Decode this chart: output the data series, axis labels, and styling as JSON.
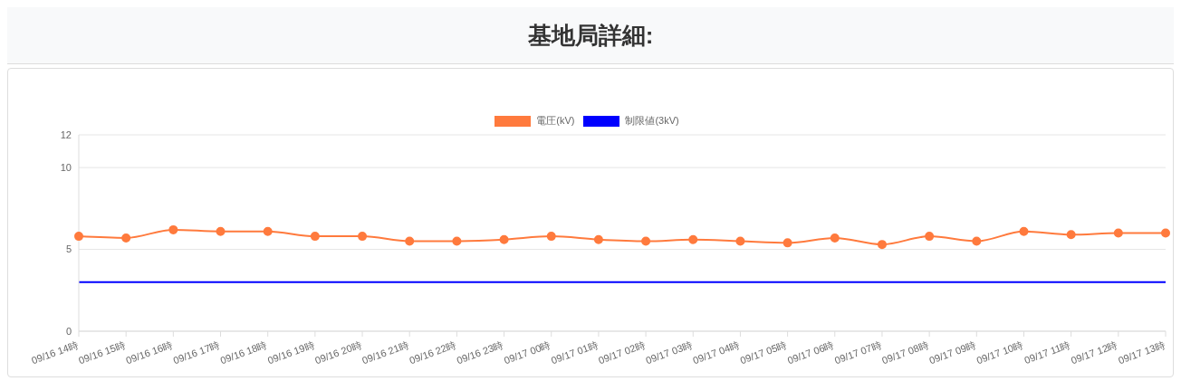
{
  "chart_data": {
    "type": "line",
    "title": "基地局詳細:",
    "categories": [
      "09/16 14時",
      "09/16 15時",
      "09/16 16時",
      "09/16 17時",
      "09/16 18時",
      "09/16 19時",
      "09/16 20時",
      "09/16 21時",
      "09/16 22時",
      "09/16 23時",
      "09/17 00時",
      "09/17 01時",
      "09/17 02時",
      "09/17 03時",
      "09/17 04時",
      "09/17 05時",
      "09/17 06時",
      "09/17 07時",
      "09/17 08時",
      "09/17 09時",
      "09/17 10時",
      "09/17 11時",
      "09/17 12時",
      "09/17 13時"
    ],
    "series": [
      {
        "name": "電圧(kV)",
        "color": "#ff7a3d",
        "marker": "circle",
        "values": [
          5.8,
          5.7,
          6.2,
          6.1,
          6.1,
          5.8,
          5.8,
          5.5,
          5.5,
          5.6,
          5.8,
          5.6,
          5.5,
          5.6,
          5.5,
          5.4,
          5.7,
          5.3,
          5.8,
          5.5,
          6.1,
          5.9,
          6.0,
          6.0
        ]
      },
      {
        "name": "制限値(3kV)",
        "color": "#0000ff",
        "marker": "none",
        "values": [
          3,
          3,
          3,
          3,
          3,
          3,
          3,
          3,
          3,
          3,
          3,
          3,
          3,
          3,
          3,
          3,
          3,
          3,
          3,
          3,
          3,
          3,
          3,
          3
        ]
      }
    ],
    "ylim": [
      0,
      12
    ],
    "yticks": [
      0,
      5,
      10,
      12
    ],
    "grid": "y",
    "legend": "top"
  }
}
